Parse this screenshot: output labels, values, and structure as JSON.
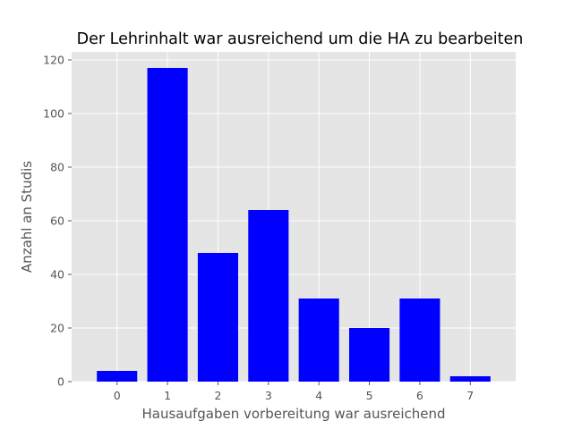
{
  "chart_data": {
    "type": "bar",
    "title": "Der Lehrinhalt war ausreichend um die HA zu bearbeiten",
    "xlabel": "Hausaufgaben vorbereitung war ausreichend",
    "ylabel": "Anzahl an Studis",
    "categories": [
      "0",
      "1",
      "2",
      "3",
      "4",
      "5",
      "6",
      "7"
    ],
    "values": [
      4,
      117,
      48,
      64,
      31,
      20,
      31,
      2
    ],
    "ylim": [
      0,
      123
    ],
    "yticks": [
      0,
      20,
      40,
      60,
      80,
      100,
      120
    ],
    "grid": true,
    "bar_color": "#0000ff",
    "plot_background": "#e5e5e5"
  }
}
